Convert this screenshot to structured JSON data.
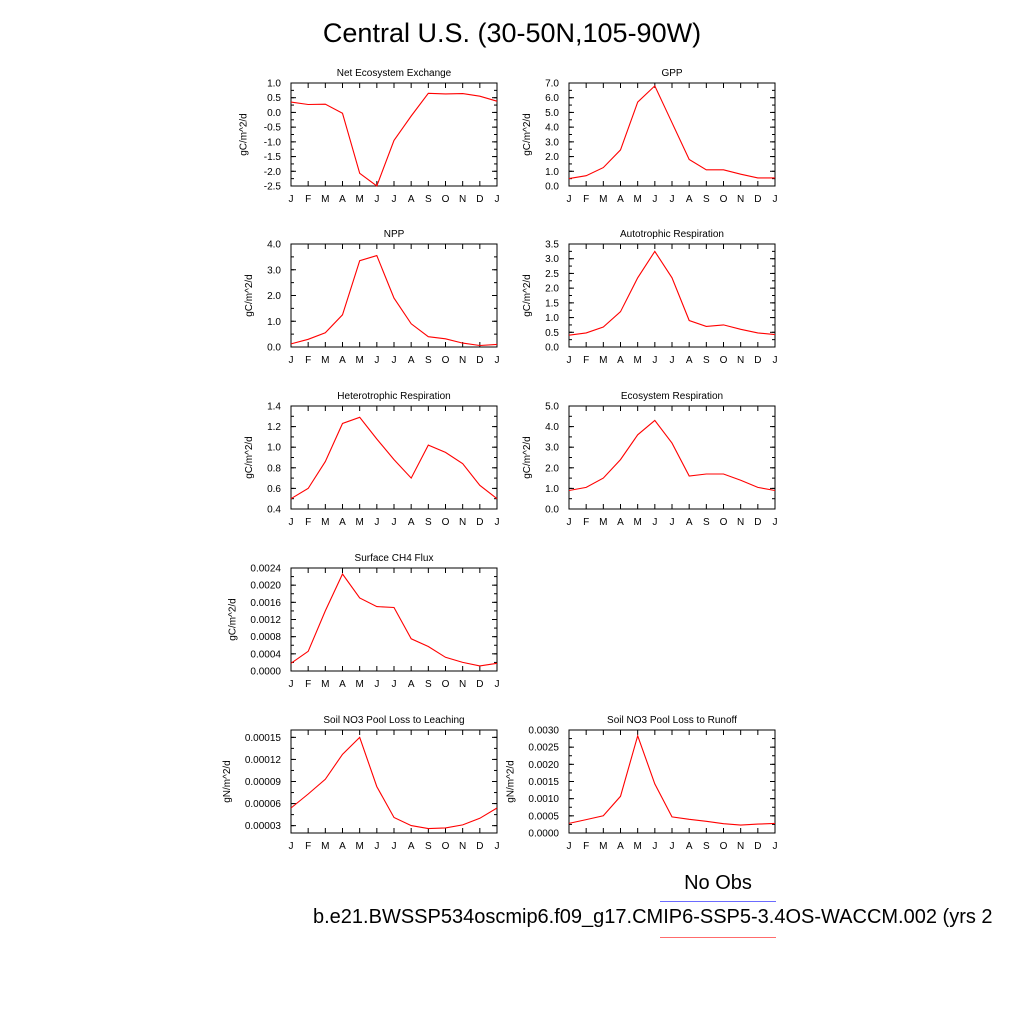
{
  "page": {
    "title": "Central U.S. (30-50N,105-90W)",
    "legend_label": "No Obs",
    "case_name": "b.e21.BWSSP534oscmip6.f09_g17.CMIP6-SSP5-3.4OS-WACCM.002 (yrs 2",
    "line_color": "#ff0000",
    "obs_legend_color": "#6b6bff",
    "model_legend_color": "#ff6b6b"
  },
  "chart_data": [
    {
      "type": "line",
      "title": "Net Ecosystem Exchange",
      "ylabel": "gC/m^2/d",
      "x": [
        "J",
        "F",
        "M",
        "A",
        "M",
        "J",
        "J",
        "A",
        "S",
        "O",
        "N",
        "D",
        "J"
      ],
      "ylim": [
        -2.5,
        1.0
      ],
      "yticks": [
        "1.0",
        "0.5",
        "0.0",
        "-0.5",
        "-1.0",
        "-1.5",
        "-2.0",
        "-2.5"
      ],
      "series": [
        {
          "values": [
            0.35,
            0.27,
            0.28,
            -0.03,
            -2.07,
            -2.5,
            -0.95,
            -0.12,
            0.65,
            0.63,
            0.64,
            0.55,
            0.38
          ]
        }
      ]
    },
    {
      "type": "line",
      "title": "GPP",
      "ylabel": "gC/m^2/d",
      "x": [
        "J",
        "F",
        "M",
        "A",
        "M",
        "J",
        "J",
        "A",
        "S",
        "O",
        "N",
        "D",
        "J"
      ],
      "ylim": [
        0,
        7.0
      ],
      "yticks": [
        "7.0",
        "6.0",
        "5.0",
        "4.0",
        "3.0",
        "2.0",
        "1.0",
        "0.0"
      ],
      "series": [
        {
          "values": [
            0.5,
            0.7,
            1.25,
            2.45,
            5.7,
            6.8,
            4.3,
            1.8,
            1.1,
            1.1,
            0.8,
            0.55,
            0.55
          ]
        }
      ]
    },
    {
      "type": "line",
      "title": "NPP",
      "ylabel": "gC/m^2/d",
      "x": [
        "J",
        "F",
        "M",
        "A",
        "M",
        "J",
        "J",
        "A",
        "S",
        "O",
        "N",
        "D",
        "J"
      ],
      "ylim": [
        0,
        4.0
      ],
      "yticks": [
        "4.0",
        "3.0",
        "2.0",
        "1.0",
        "0.0"
      ],
      "series": [
        {
          "values": [
            0.12,
            0.3,
            0.55,
            1.25,
            3.35,
            3.55,
            1.9,
            0.9,
            0.4,
            0.32,
            0.15,
            0.06,
            0.1
          ]
        }
      ]
    },
    {
      "type": "line",
      "title": "Autotrophic Respiration",
      "ylabel": "gC/m^2/d",
      "x": [
        "J",
        "F",
        "M",
        "A",
        "M",
        "J",
        "J",
        "A",
        "S",
        "O",
        "N",
        "D",
        "J"
      ],
      "ylim": [
        0,
        3.5
      ],
      "yticks": [
        "3.5",
        "3.0",
        "2.5",
        "2.0",
        "1.5",
        "1.0",
        "0.5",
        "0.0"
      ],
      "series": [
        {
          "values": [
            0.4,
            0.48,
            0.68,
            1.2,
            2.35,
            3.25,
            2.35,
            0.9,
            0.7,
            0.75,
            0.6,
            0.48,
            0.42
          ]
        }
      ]
    },
    {
      "type": "line",
      "title": "Heterotrophic Respiration",
      "ylabel": "gC/m^2/d",
      "x": [
        "J",
        "F",
        "M",
        "A",
        "M",
        "J",
        "J",
        "A",
        "S",
        "O",
        "N",
        "D",
        "J"
      ],
      "ylim": [
        0.4,
        1.4
      ],
      "yticks": [
        "1.4",
        "1.2",
        "1.0",
        "0.8",
        "0.6",
        "0.4"
      ],
      "series": [
        {
          "values": [
            0.5,
            0.6,
            0.86,
            1.23,
            1.29,
            1.08,
            0.88,
            0.7,
            1.02,
            0.95,
            0.84,
            0.63,
            0.5
          ]
        }
      ]
    },
    {
      "type": "line",
      "title": "Ecosystem Respiration",
      "ylabel": "gC/m^2/d",
      "x": [
        "J",
        "F",
        "M",
        "A",
        "M",
        "J",
        "J",
        "A",
        "S",
        "O",
        "N",
        "D",
        "J"
      ],
      "ylim": [
        0,
        5.0
      ],
      "yticks": [
        "5.0",
        "4.0",
        "3.0",
        "2.0",
        "1.0",
        "0.0"
      ],
      "series": [
        {
          "values": [
            0.9,
            1.05,
            1.5,
            2.4,
            3.6,
            4.3,
            3.2,
            1.6,
            1.7,
            1.7,
            1.4,
            1.05,
            0.9
          ]
        }
      ]
    },
    {
      "type": "line",
      "title": "Surface CH4 Flux",
      "ylabel": "gC/m^2/d",
      "x": [
        "J",
        "F",
        "M",
        "A",
        "M",
        "J",
        "J",
        "A",
        "S",
        "O",
        "N",
        "D",
        "J"
      ],
      "ylim": [
        0,
        0.0024
      ],
      "yticks": [
        "0.0024",
        "0.0020",
        "0.0016",
        "0.0012",
        "0.0008",
        "0.0004",
        "0.0000"
      ],
      "series": [
        {
          "values": [
            0.00018,
            0.00046,
            0.0014,
            0.00226,
            0.0017,
            0.0015,
            0.00148,
            0.00075,
            0.00057,
            0.00032,
            0.0002,
            0.00012,
            0.00018
          ]
        }
      ]
    },
    {
      "type": "line",
      "title": "Soil NO3 Pool Loss to Leaching",
      "ylabel": "gN/m^2/d",
      "x": [
        "J",
        "F",
        "M",
        "A",
        "M",
        "J",
        "J",
        "A",
        "S",
        "O",
        "N",
        "D",
        "J"
      ],
      "ylim": [
        2e-05,
        0.00016
      ],
      "yticks": [
        "0.00015",
        "0.00012",
        "0.00009",
        "0.00006",
        "0.00003"
      ],
      "series": [
        {
          "values": [
            5.4e-05,
            7.3e-05,
            9.3e-05,
            0.000127,
            0.00015,
            8.3e-05,
            4.1e-05,
            3e-05,
            2.6e-05,
            2.7e-05,
            3.1e-05,
            4e-05,
            5.4e-05
          ]
        }
      ]
    },
    {
      "type": "line",
      "title": "Soil NO3 Pool Loss to Runoff",
      "ylabel": "gN/m^2/d",
      "x": [
        "J",
        "F",
        "M",
        "A",
        "M",
        "J",
        "J",
        "A",
        "S",
        "O",
        "N",
        "D",
        "J"
      ],
      "ylim": [
        0,
        0.003
      ],
      "yticks": [
        "0.0030",
        "0.0025",
        "0.0020",
        "0.0015",
        "0.0010",
        "0.0005",
        "0.0000"
      ],
      "series": [
        {
          "values": [
            0.00028,
            0.00039,
            0.0005,
            0.00107,
            0.00283,
            0.00143,
            0.00047,
            0.0004,
            0.00034,
            0.00027,
            0.00023,
            0.00026,
            0.00028
          ]
        }
      ]
    }
  ]
}
